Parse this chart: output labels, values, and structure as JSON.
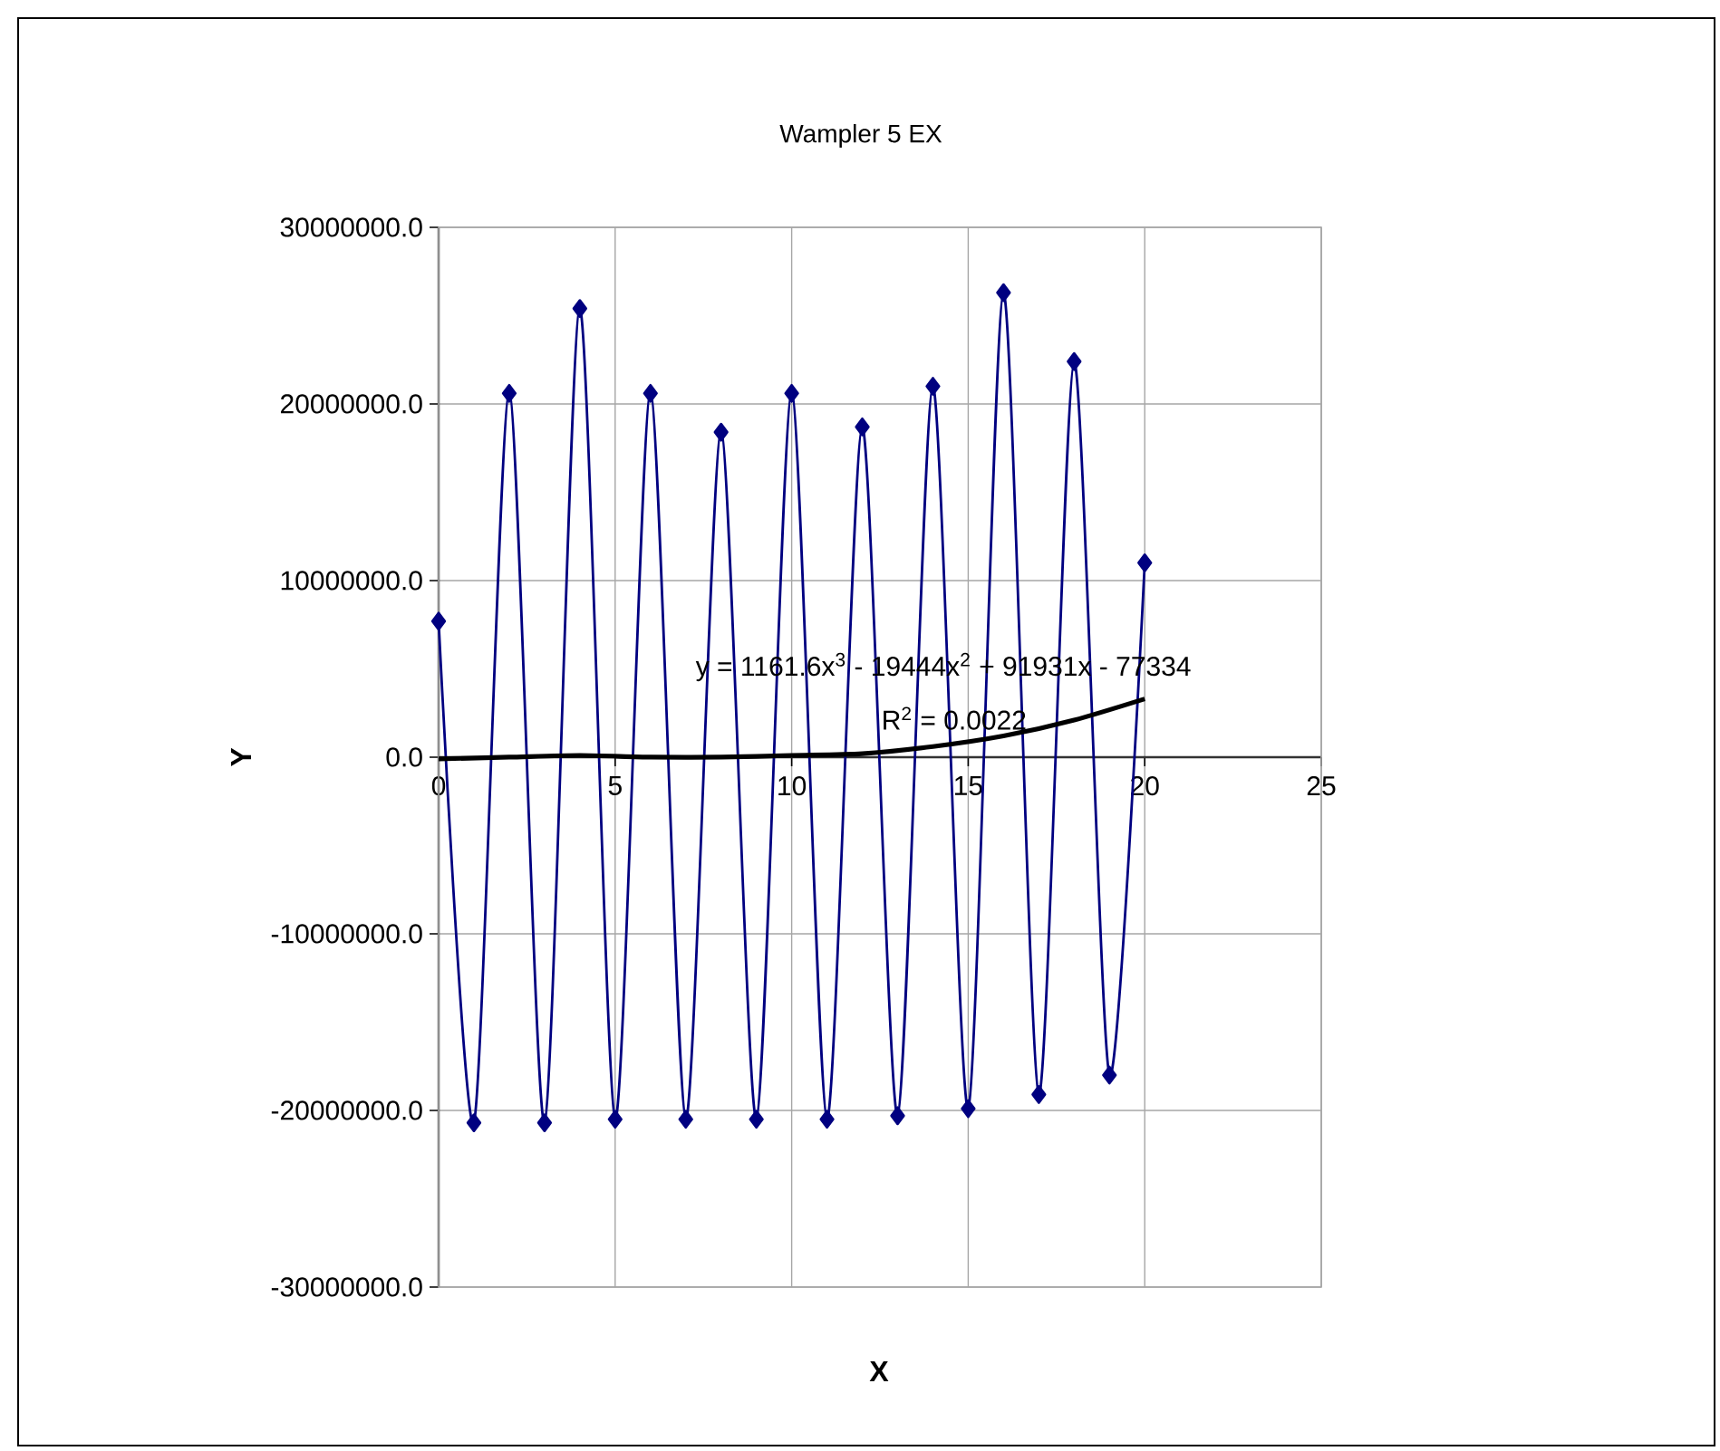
{
  "chart_data": {
    "type": "line",
    "title": "Wampler 5 EX",
    "xlabel": "X",
    "ylabel": "Y",
    "xlim": [
      0,
      25
    ],
    "xticks": [
      0,
      5,
      10,
      15,
      20,
      25
    ],
    "ylim": [
      -30000000,
      30000000
    ],
    "yticks": [
      {
        "value": -30000000,
        "label": "-30000000.0"
      },
      {
        "value": -20000000,
        "label": "-20000000.0"
      },
      {
        "value": -10000000,
        "label": "-10000000.0"
      },
      {
        "value": 0,
        "label": "0.0"
      },
      {
        "value": 10000000,
        "label": "10000000.0"
      },
      {
        "value": 20000000,
        "label": "20000000.0"
      },
      {
        "value": 30000000,
        "label": "30000000.0"
      }
    ],
    "grid": true,
    "marker": "diamond",
    "series": [
      {
        "color": "#000080",
        "x": [
          0,
          1,
          2,
          3,
          4,
          5,
          6,
          7,
          8,
          9,
          10,
          11,
          12,
          13,
          14,
          15,
          16,
          17,
          18,
          19,
          20
        ],
        "values": [
          7700000,
          -20700000,
          20600000,
          -20700000,
          25400000,
          -20500000,
          20600000,
          -20500000,
          18400000,
          -20500000,
          20600000,
          -20500000,
          18700000,
          -20300000,
          21000000,
          -19900000,
          26300000,
          -19100000,
          22400000,
          -18000000,
          11000000
        ]
      },
      {
        "type": "line",
        "color": "#000000",
        "marker": "none",
        "x": [
          0,
          2,
          4,
          6,
          8,
          10,
          12,
          14,
          16,
          18,
          20
        ],
        "values": [
          -100000,
          0,
          100000,
          0,
          0,
          100000,
          200000,
          600000,
          1200000,
          2100000,
          3300000
        ]
      }
    ],
    "annotations": [
      "y = 1161.6x$^{3}$ - 19444x$^{2}$ + 91931x - 77334",
      "R$^{2}$ = 0.0022"
    ]
  }
}
